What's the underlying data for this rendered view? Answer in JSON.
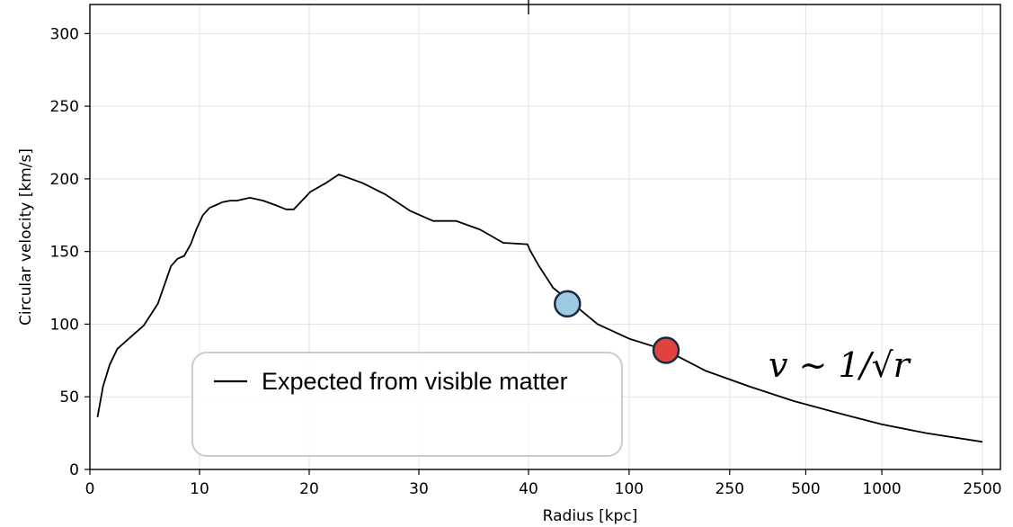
{
  "chart_data": {
    "type": "line",
    "title": "",
    "xlabel": "Radius [kpc]",
    "ylabel": "Circular velocity [km/s]",
    "ylim": [
      0,
      320
    ],
    "x_scale": "piecewise: linear 0–40 kpc, logarithmic 40–2500 kpc",
    "grid": true,
    "legend_position": "lower-left",
    "x_ticks": [
      0,
      10,
      20,
      30,
      40,
      100,
      250,
      500,
      1000,
      2500
    ],
    "x_tick_labels": [
      "0",
      "10",
      "20",
      "30",
      "40",
      "100",
      "250",
      "500",
      "1000",
      "2500"
    ],
    "y_ticks": [
      0,
      50,
      100,
      150,
      200,
      250,
      300
    ],
    "y_tick_labels": [
      "0",
      "50",
      "100",
      "150",
      "200",
      "250",
      "300"
    ],
    "series": [
      {
        "name": "Expected from visible matter",
        "color": "#000000",
        "x": [
          0.7,
          1.2,
          1.8,
          2.5,
          3.4,
          4.9,
          6.2,
          7.4,
          8.0,
          8.6,
          9.2,
          9.7,
          10.3,
          10.9,
          11.5,
          12.1,
          12.8,
          13.4,
          14.6,
          15.8,
          16.9,
          17.9,
          18.6,
          20.1,
          21.5,
          22.7,
          24.9,
          27.0,
          29.2,
          31.3,
          33.4,
          35.6,
          37.7,
          39.9,
          40.5,
          44,
          50,
          60,
          75,
          100,
          140,
          200,
          300,
          450,
          700,
          1000,
          1500,
          2500
        ],
        "y": [
          36,
          57,
          72,
          83,
          89,
          99,
          114,
          140,
          145,
          147,
          155,
          165,
          175,
          180,
          182,
          184,
          185,
          185,
          187,
          185,
          182,
          179,
          179,
          191,
          197,
          203,
          197,
          189,
          178,
          171,
          171,
          165,
          156,
          155,
          151,
          140,
          125,
          114,
          100,
          90,
          82,
          68,
          57,
          47,
          38,
          31,
          25,
          19
        ]
      }
    ],
    "markers": [
      {
        "x": 57,
        "y": 114,
        "color": "#9ecae1"
      },
      {
        "x": 140,
        "y": 82,
        "color": "#e0423f"
      }
    ],
    "annotation": "v ∼ 1/√r"
  }
}
